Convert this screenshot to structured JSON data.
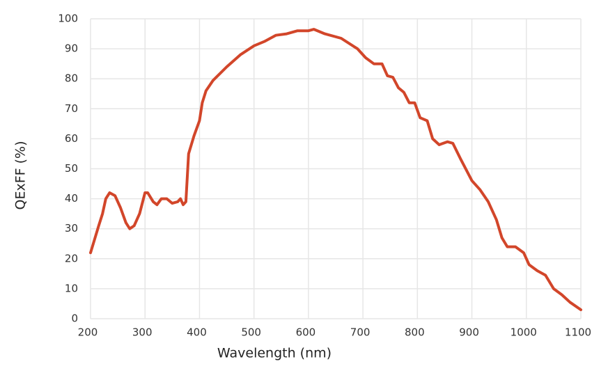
{
  "chart_data": {
    "type": "line",
    "x_label": "Wavelength (nm)",
    "y_label": "QExFF (%)",
    "x": [
      200,
      205,
      215,
      222,
      228,
      235,
      245,
      255,
      265,
      272,
      280,
      290,
      300,
      305,
      315,
      322,
      330,
      340,
      350,
      360,
      365,
      370,
      375,
      380,
      390,
      400,
      405,
      412,
      425,
      450,
      475,
      500,
      520,
      540,
      560,
      580,
      600,
      610,
      630,
      660,
      690,
      705,
      720,
      735,
      745,
      755,
      765,
      775,
      785,
      795,
      805,
      818,
      828,
      840,
      855,
      865,
      880,
      900,
      915,
      930,
      945,
      955,
      965,
      980,
      995,
      1005,
      1020,
      1035,
      1050,
      1065,
      1080,
      1100
    ],
    "series": [
      {
        "name": "QExFF",
        "color": "#d2462a",
        "values": [
          22,
          25,
          31,
          35,
          40,
          42,
          41,
          37,
          32,
          30,
          31,
          35,
          42,
          42,
          39,
          38,
          40,
          40,
          38.5,
          39,
          40,
          38,
          39,
          55,
          61,
          66,
          72,
          76,
          79.5,
          84,
          88,
          91,
          92.5,
          94.5,
          95,
          96,
          96,
          96.5,
          95,
          93.5,
          90,
          87,
          85,
          85,
          81,
          80.5,
          77,
          75.5,
          72,
          72,
          67,
          66,
          60,
          58,
          59,
          58.5,
          53,
          46,
          43,
          39,
          33,
          27,
          24,
          24,
          22,
          18,
          16,
          14.5,
          10,
          8,
          5.5,
          3
        ]
      }
    ],
    "xlim": [
      200,
      1100
    ],
    "ylim": [
      0,
      100
    ],
    "xticks": [
      200,
      300,
      400,
      500,
      600,
      700,
      800,
      900,
      1000,
      1100
    ],
    "yticks": [
      0,
      10,
      20,
      30,
      40,
      50,
      60,
      70,
      80,
      90,
      100
    ],
    "grid": true
  }
}
